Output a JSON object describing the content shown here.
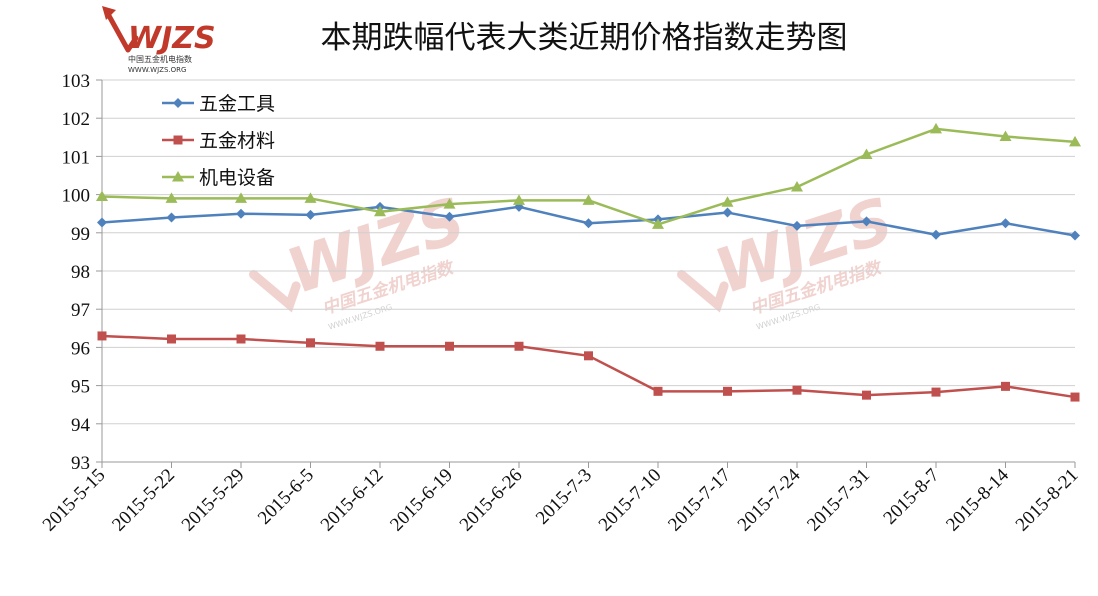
{
  "logo": {
    "brand": "WJZS",
    "subtitle": "中国五金机电指数",
    "url": "WWW.WJZS.ORG"
  },
  "watermark": {
    "brand": "WJZS",
    "subtitle": "中国五金机电指数",
    "url": "WWW.WJZS.ORG"
  },
  "colors": {
    "axis": "#9a9a9a",
    "grid": "#d0d0d0",
    "brand_red": "#c0392b"
  },
  "chart_data": {
    "type": "line",
    "title": "本期跌幅代表大类近期价格指数走势图",
    "xlabel": "",
    "ylabel": "",
    "categories": [
      "2015-5-15",
      "2015-5-22",
      "2015-5-29",
      "2015-6-5",
      "2015-6-12",
      "2015-6-19",
      "2015-6-26",
      "2015-7-3",
      "2015-7-10",
      "2015-7-17",
      "2015-7-24",
      "2015-7-31",
      "2015-8-7",
      "2015-8-14",
      "2015-8-21"
    ],
    "ylim": [
      93,
      103
    ],
    "yticks": [
      93,
      94,
      95,
      96,
      97,
      98,
      99,
      100,
      101,
      102,
      103
    ],
    "grid": true,
    "legend_position": "top-left",
    "series": [
      {
        "name": "五金工具",
        "color": "#4f81bd",
        "marker": "diamond",
        "values": [
          99.27,
          99.4,
          99.5,
          99.47,
          99.68,
          99.42,
          99.68,
          99.25,
          99.35,
          99.53,
          99.18,
          99.3,
          98.95,
          99.25,
          98.93
        ]
      },
      {
        "name": "五金材料",
        "color": "#c0504d",
        "marker": "square",
        "values": [
          96.3,
          96.22,
          96.22,
          96.12,
          96.03,
          96.03,
          96.03,
          95.78,
          94.85,
          94.85,
          94.88,
          94.75,
          94.83,
          94.98,
          94.7
        ]
      },
      {
        "name": "机电设备",
        "color": "#9bbb59",
        "marker": "triangle",
        "values": [
          99.95,
          99.9,
          99.9,
          99.9,
          99.55,
          99.75,
          99.85,
          99.85,
          99.22,
          99.8,
          100.2,
          101.05,
          101.72,
          101.52,
          101.38
        ]
      }
    ]
  }
}
